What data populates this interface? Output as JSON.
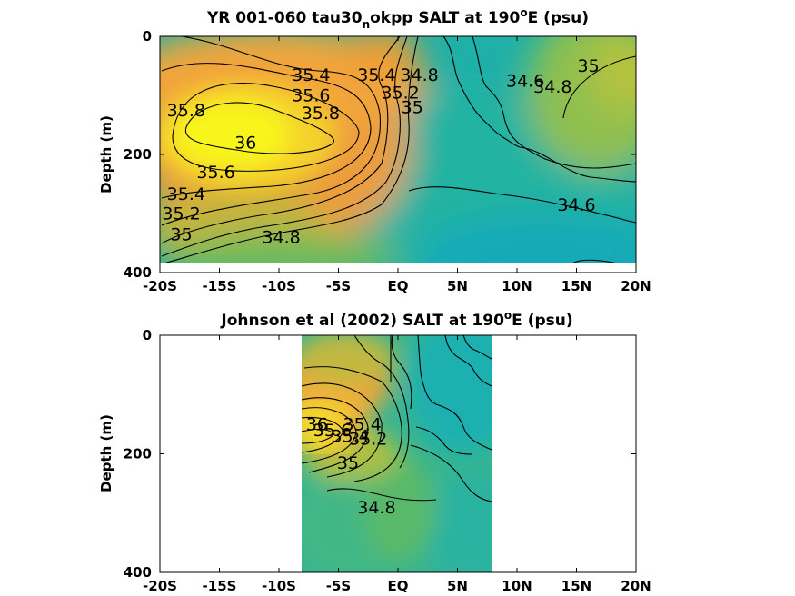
{
  "chart_data": [
    {
      "type": "contour",
      "title_main": "YR 001-060 tau30",
      "title_sub": "n",
      "title_rest": "okpp SALT at 190",
      "title_sup": "o",
      "title_end": "E (psu)",
      "ylabel": "Depth (m)",
      "x_ticks": [
        "-20S",
        "-15S",
        "-10S",
        "-5S",
        "EQ",
        "5N",
        "10N",
        "15N",
        "20N"
      ],
      "y_ticks": [
        "0",
        "200",
        "400"
      ],
      "xlim": [
        -20,
        20
      ],
      "ylim": [
        0,
        400
      ],
      "data_extent": {
        "x": [
          -20,
          20
        ],
        "y": [
          0,
          385
        ]
      },
      "contour_labels": [
        {
          "text": "35.4",
          "x": -7.3,
          "y": 75
        },
        {
          "text": "35.6",
          "x": -7.3,
          "y": 110
        },
        {
          "text": "35.8",
          "x": -6.5,
          "y": 140
        },
        {
          "text": "35.8",
          "x": -17.8,
          "y": 135
        },
        {
          "text": "36",
          "x": -12.8,
          "y": 190
        },
        {
          "text": "35.6",
          "x": -15.3,
          "y": 240
        },
        {
          "text": "35.4",
          "x": -17.8,
          "y": 277
        },
        {
          "text": "35.2",
          "x": -18.2,
          "y": 310
        },
        {
          "text": "35",
          "x": -18.2,
          "y": 345
        },
        {
          "text": "34.8",
          "x": -9.8,
          "y": 350
        },
        {
          "text": "35.4",
          "x": -1.8,
          "y": 75
        },
        {
          "text": "35.2",
          "x": 0.2,
          "y": 105
        },
        {
          "text": "34.8",
          "x": 1.8,
          "y": 75
        },
        {
          "text": "35",
          "x": 1.2,
          "y": 130
        },
        {
          "text": "34.6",
          "x": 10.7,
          "y": 85
        },
        {
          "text": "34.8",
          "x": 13.0,
          "y": 95
        },
        {
          "text": "35",
          "x": 16.0,
          "y": 60
        },
        {
          "text": "34.6",
          "x": 15.0,
          "y": 295
        }
      ]
    },
    {
      "type": "contour",
      "title_main": "Johnson et al (2002) SALT at 190",
      "title_sup": "o",
      "title_end": "E (psu)",
      "ylabel": "Depth (m)",
      "x_ticks": [
        "-20S",
        "-15S",
        "-10S",
        "-5S",
        "EQ",
        "5N",
        "10N",
        "15N",
        "20N"
      ],
      "y_ticks": [
        "0",
        "200",
        "400"
      ],
      "xlim": [
        -20,
        20
      ],
      "ylim": [
        0,
        400
      ],
      "data_extent": {
        "x": [
          -8,
          8
        ],
        "y": [
          0,
          400
        ]
      },
      "contour_labels": [
        {
          "text": "36",
          "x": -6.8,
          "y": 160
        },
        {
          "text": "35.6",
          "x": -5.5,
          "y": 170
        },
        {
          "text": "35.4",
          "x": -4.0,
          "y": 180
        },
        {
          "text": "35.2",
          "x": -2.5,
          "y": 185
        },
        {
          "text": "35.4",
          "x": -3.0,
          "y": 160
        },
        {
          "text": "35",
          "x": -4.2,
          "y": 225
        },
        {
          "text": "34.8",
          "x": -1.8,
          "y": 300
        }
      ]
    }
  ]
}
